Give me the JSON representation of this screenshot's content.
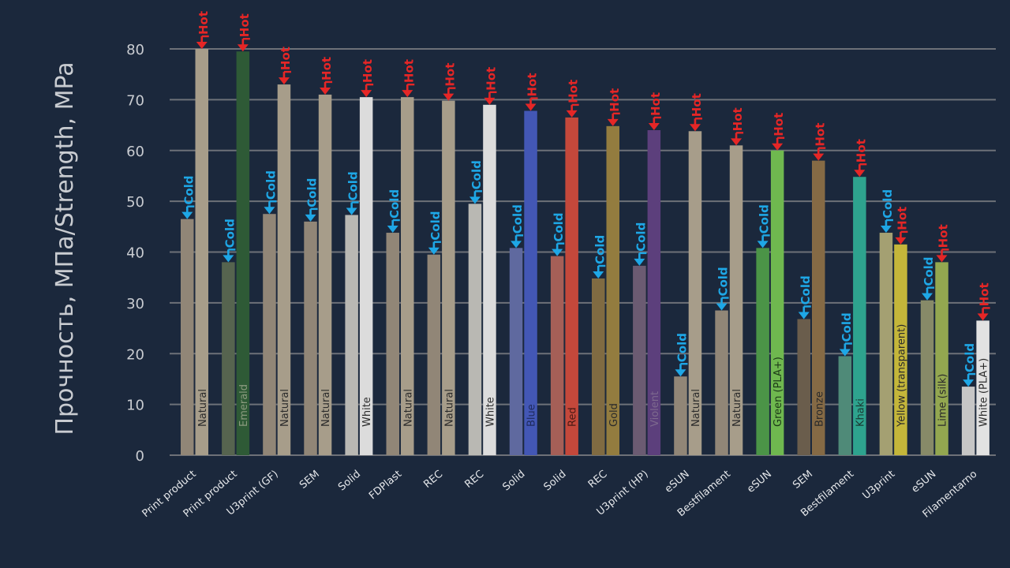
{
  "chart_data": {
    "type": "bar",
    "ylabel": "Прочность, МПа/Strength, MPa",
    "ylim": [
      0,
      80
    ],
    "yticks": [
      0,
      10,
      20,
      30,
      40,
      50,
      60,
      70,
      80
    ],
    "grid": true,
    "series": [
      {
        "name": "Cold",
        "marker_label": "Cold",
        "marker_color": "#1ea7e6"
      },
      {
        "name": "Hot",
        "marker_label": "Hot",
        "marker_color": "#e52626"
      }
    ],
    "groups": [
      {
        "category": "Print product",
        "label": "Natural",
        "cold": 46.5,
        "hot": 80,
        "cold_color": "#918677",
        "hot_color": "#a79d8a",
        "label_color": "#2b2b2b"
      },
      {
        "category": "Print product",
        "label": "Emerald",
        "cold": 38,
        "hot": 79.5,
        "cold_color": "#56644f",
        "hot_color": "#2e5a36",
        "label_color": "#8a9a7e"
      },
      {
        "category": "U3print (GF)",
        "label": "Natural",
        "cold": 47.5,
        "hot": 73,
        "cold_color": "#918677",
        "hot_color": "#a79d8a",
        "label_color": "#2b2b2b"
      },
      {
        "category": "SEM",
        "label": "Natural",
        "cold": 46,
        "hot": 71,
        "cold_color": "#918677",
        "hot_color": "#a79d8a",
        "label_color": "#2b2b2b"
      },
      {
        "category": "Solid",
        "label": "White",
        "cold": 47.3,
        "hot": 70.5,
        "cold_color": "#b9b8b3",
        "hot_color": "#dcdcdc",
        "label_color": "#2b2b2b"
      },
      {
        "category": "FDPlast",
        "label": "Natural",
        "cold": 43.8,
        "hot": 70.5,
        "cold_color": "#918677",
        "hot_color": "#a79d8a",
        "label_color": "#2b2b2b"
      },
      {
        "category": "REC",
        "label": "Natural",
        "cold": 39.5,
        "hot": 69.8,
        "cold_color": "#918677",
        "hot_color": "#a79d8a",
        "label_color": "#2b2b2b"
      },
      {
        "category": "REC",
        "label": "White",
        "cold": 49.5,
        "hot": 69,
        "cold_color": "#b9b8b3",
        "hot_color": "#dcdcdc",
        "label_color": "#2b2b2b"
      },
      {
        "category": "Solid",
        "label": "Blue",
        "cold": 40.8,
        "hot": 67.8,
        "cold_color": "#5f699f",
        "hot_color": "#4357b5",
        "label_color": "#1e2a5c"
      },
      {
        "category": "Solid",
        "label": "Red",
        "cold": 39.2,
        "hot": 66.5,
        "cold_color": "#a55f57",
        "hot_color": "#c4483b",
        "label_color": "#4a1a14"
      },
      {
        "category": "REC",
        "label": "Gold",
        "cold": 34.8,
        "hot": 64.8,
        "cold_color": "#806b42",
        "hot_color": "#937c3f",
        "label_color": "#2b2b2b"
      },
      {
        "category": "U3print (HP)",
        "label": "Violent",
        "cold": 37.3,
        "hot": 64,
        "cold_color": "#6b5b72",
        "hot_color": "#5c3f7c",
        "label_color": "#7e6a8f"
      },
      {
        "category": "eSUN",
        "label": "Natural",
        "cold": 15.5,
        "hot": 63.8,
        "cold_color": "#918677",
        "hot_color": "#a79d8a",
        "label_color": "#2b2b2b"
      },
      {
        "category": "Bestfilament",
        "label": "Natural",
        "cold": 28.5,
        "hot": 61,
        "cold_color": "#918677",
        "hot_color": "#a79d8a",
        "label_color": "#2b2b2b"
      },
      {
        "category": "eSUN",
        "label": "Green (PLA+)",
        "cold": 40.8,
        "hot": 60,
        "cold_color": "#4b9447",
        "hot_color": "#6fb84f",
        "label_color": "#1c3a17"
      },
      {
        "category": "SEM",
        "label": "Bronze",
        "cold": 26.8,
        "hot": 58,
        "cold_color": "#6a5d4c",
        "hot_color": "#856a45",
        "label_color": "#2b2b2b"
      },
      {
        "category": "Bestfilament",
        "label": "Khaki",
        "cold": 19.5,
        "hot": 54.8,
        "cold_color": "#4f8a78",
        "hot_color": "#2ea38e",
        "label_color": "#1a3a33"
      },
      {
        "category": "U3print",
        "label": "Yellow (transparent)",
        "cold": 43.8,
        "hot": 41.5,
        "cold_color": "#a4a072",
        "hot_color": "#c4b63a",
        "label_color": "#2b2b2b"
      },
      {
        "category": "eSUN",
        "label": "Lime (silk)",
        "cold": 30.5,
        "hot": 38,
        "cold_color": "#878a68",
        "hot_color": "#93a750",
        "label_color": "#2b2b2b"
      },
      {
        "category": "Filamentarno",
        "label": "White (PLA+)",
        "cold": 13.5,
        "hot": 26.5,
        "cold_color": "#c6c6c6",
        "hot_color": "#e2e2e2",
        "label_color": "#2b2b2b"
      }
    ]
  }
}
